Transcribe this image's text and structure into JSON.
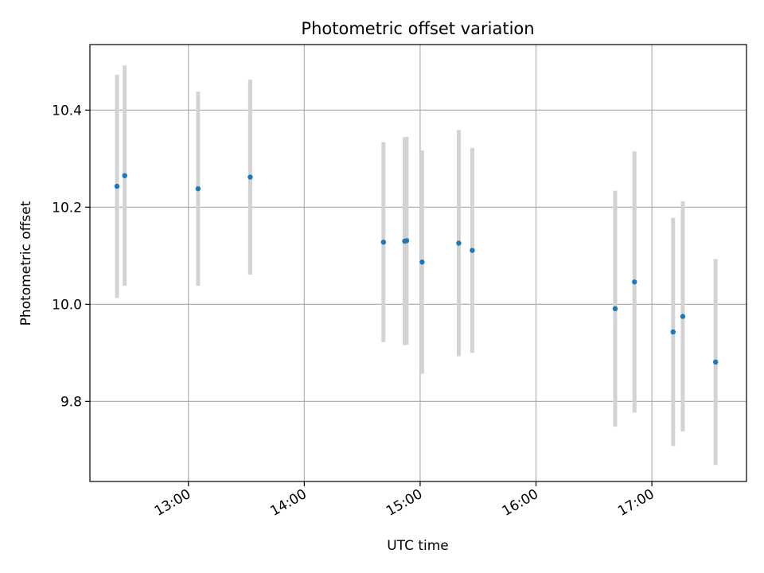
{
  "chart_data": {
    "type": "scatter",
    "title": "Photometric offset variation",
    "xlabel": "UTC time",
    "ylabel": "Photometric offset",
    "grid": true,
    "xlim": [
      "12:09",
      "17:49"
    ],
    "ylim": [
      9.635,
      10.535
    ],
    "x_ticks": [
      "13:00",
      "14:00",
      "15:00",
      "16:00",
      "17:00"
    ],
    "y_ticks": [
      9.8,
      10.0,
      10.2,
      10.4
    ],
    "y_tick_labels": [
      "9.8",
      "10.0",
      "10.2",
      "10.4"
    ],
    "colors": {
      "points": "#1f77b4",
      "error_bars": "#d3d3d3",
      "grid": "#b0b0b0"
    },
    "points": [
      {
        "x": "12:23",
        "y": 10.243,
        "yerr": 0.23
      },
      {
        "x": "12:27",
        "y": 10.265,
        "yerr": 0.227
      },
      {
        "x": "13:05",
        "y": 10.238,
        "yerr": 0.2
      },
      {
        "x": "13:32",
        "y": 10.262,
        "yerr": 0.201
      },
      {
        "x": "14:41",
        "y": 10.128,
        "yerr": 0.206
      },
      {
        "x": "14:52",
        "y": 10.13,
        "yerr": 0.214
      },
      {
        "x": "14:53",
        "y": 10.131,
        "yerr": 0.214
      },
      {
        "x": "15:01",
        "y": 10.087,
        "yerr": 0.23
      },
      {
        "x": "15:20",
        "y": 10.126,
        "yerr": 0.233
      },
      {
        "x": "15:27",
        "y": 10.111,
        "yerr": 0.211
      },
      {
        "x": "16:41",
        "y": 9.991,
        "yerr": 0.243
      },
      {
        "x": "16:51",
        "y": 10.046,
        "yerr": 0.269
      },
      {
        "x": "17:11",
        "y": 9.943,
        "yerr": 0.235
      },
      {
        "x": "17:16",
        "y": 9.975,
        "yerr": 0.237
      },
      {
        "x": "17:33",
        "y": 9.881,
        "yerr": 0.212
      }
    ]
  }
}
